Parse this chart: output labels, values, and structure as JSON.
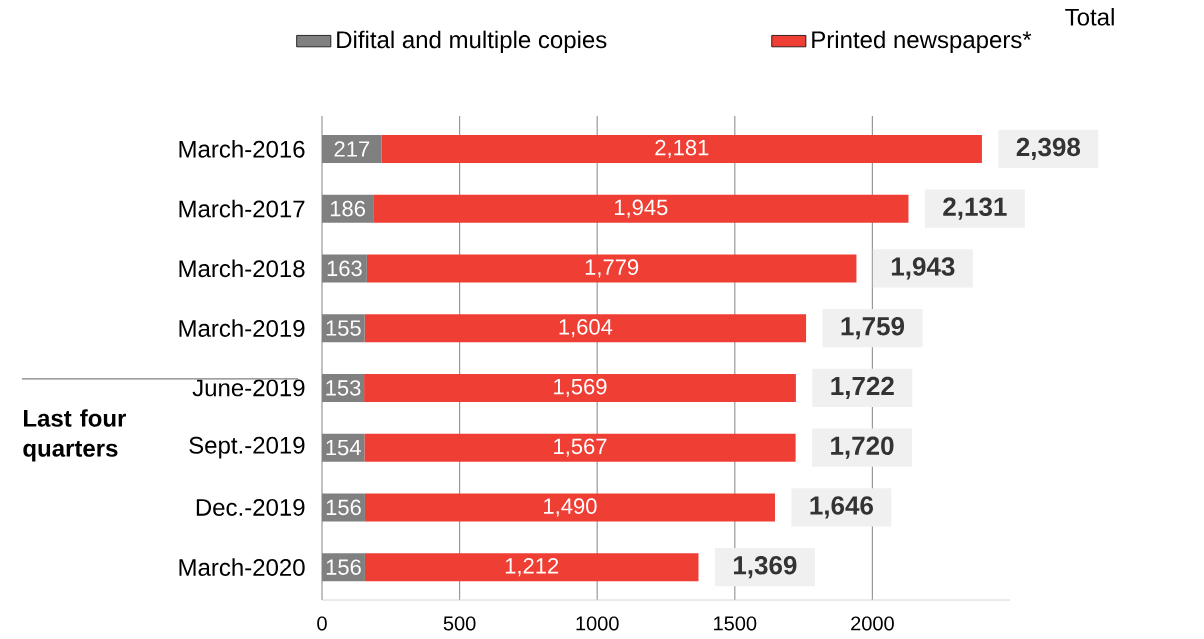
{
  "chart_data": {
    "type": "bar",
    "orientation": "horizontal",
    "stacked": true,
    "categories": [
      "March-2016",
      "March-2017",
      "March-2018",
      "March-2019",
      "June-2019",
      "Sept.-2019",
      "Dec.-2019",
      "March-2020"
    ],
    "series": [
      {
        "name": "Difital and multiple copies",
        "color": "#808080",
        "values": [
          217,
          186,
          163,
          155,
          153,
          154,
          156,
          156
        ],
        "value_labels": [
          "217",
          "186",
          "163",
          "155",
          "153",
          "154",
          "156",
          "156"
        ]
      },
      {
        "name": "Printed newspapers*",
        "color": "#ef3e33",
        "values": [
          2181,
          1945,
          1779,
          1604,
          1569,
          1567,
          1490,
          1212
        ],
        "value_labels": [
          "2,181",
          "1,945",
          "1,779",
          "1,604",
          "1,569",
          "1,567",
          "1,490",
          "1,212"
        ]
      }
    ],
    "totals": [
      "2,398",
      "2,131",
      "1,943",
      "1,759",
      "1,722",
      "1,720",
      "1,646",
      "1,369"
    ],
    "annotations": [
      "Total",
      "Last four quarters"
    ],
    "xlim": [
      0,
      2500
    ],
    "xticks": [
      0,
      500,
      1000,
      1500,
      2000
    ],
    "grid": "x",
    "legend": "top"
  }
}
